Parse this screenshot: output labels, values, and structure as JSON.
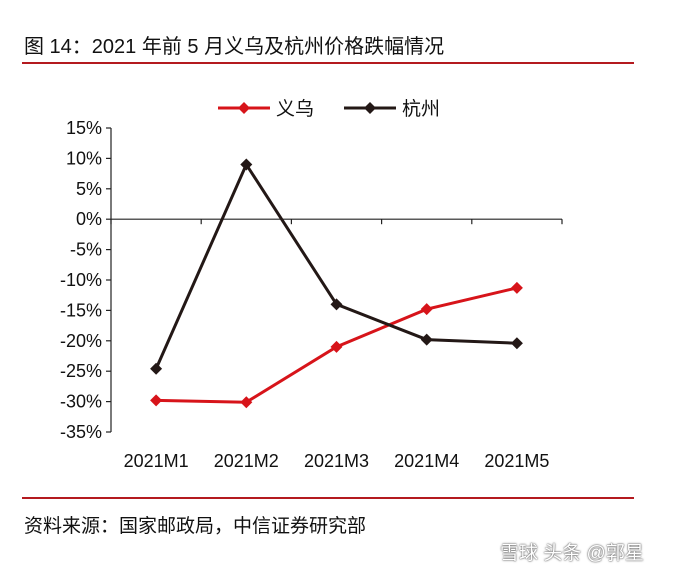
{
  "figure": {
    "title": "图 14：2021 年前 5 月义乌及杭州价格跌幅情况",
    "source": "资料来源：国家邮政局，中信证券研究部",
    "watermark": "雪球 头条 @郭星"
  },
  "chart_data": {
    "type": "line",
    "categories": [
      "2021M1",
      "2021M2",
      "2021M3",
      "2021M4",
      "2021M5"
    ],
    "series": [
      {
        "name": "义乌",
        "color": "#d7141a",
        "values": [
          -29.8,
          -30.1,
          -21.0,
          -14.8,
          -11.3
        ]
      },
      {
        "name": "杭州",
        "color": "#231816",
        "values": [
          -24.6,
          9.0,
          -14.0,
          -19.8,
          -20.4
        ]
      }
    ],
    "y_ticks": [
      15,
      10,
      5,
      0,
      -5,
      -10,
      -15,
      -20,
      -25,
      -30,
      -35
    ],
    "y_tick_labels": [
      "15%",
      "10%",
      "5%",
      "0%",
      "-5%",
      "-10%",
      "-15%",
      "-20%",
      "-25%",
      "-30%",
      "-35%"
    ],
    "ylim": [
      -35,
      15
    ],
    "xlabel": "",
    "ylabel": "",
    "legend_position": "top",
    "marker": "diamond",
    "grid": false
  }
}
